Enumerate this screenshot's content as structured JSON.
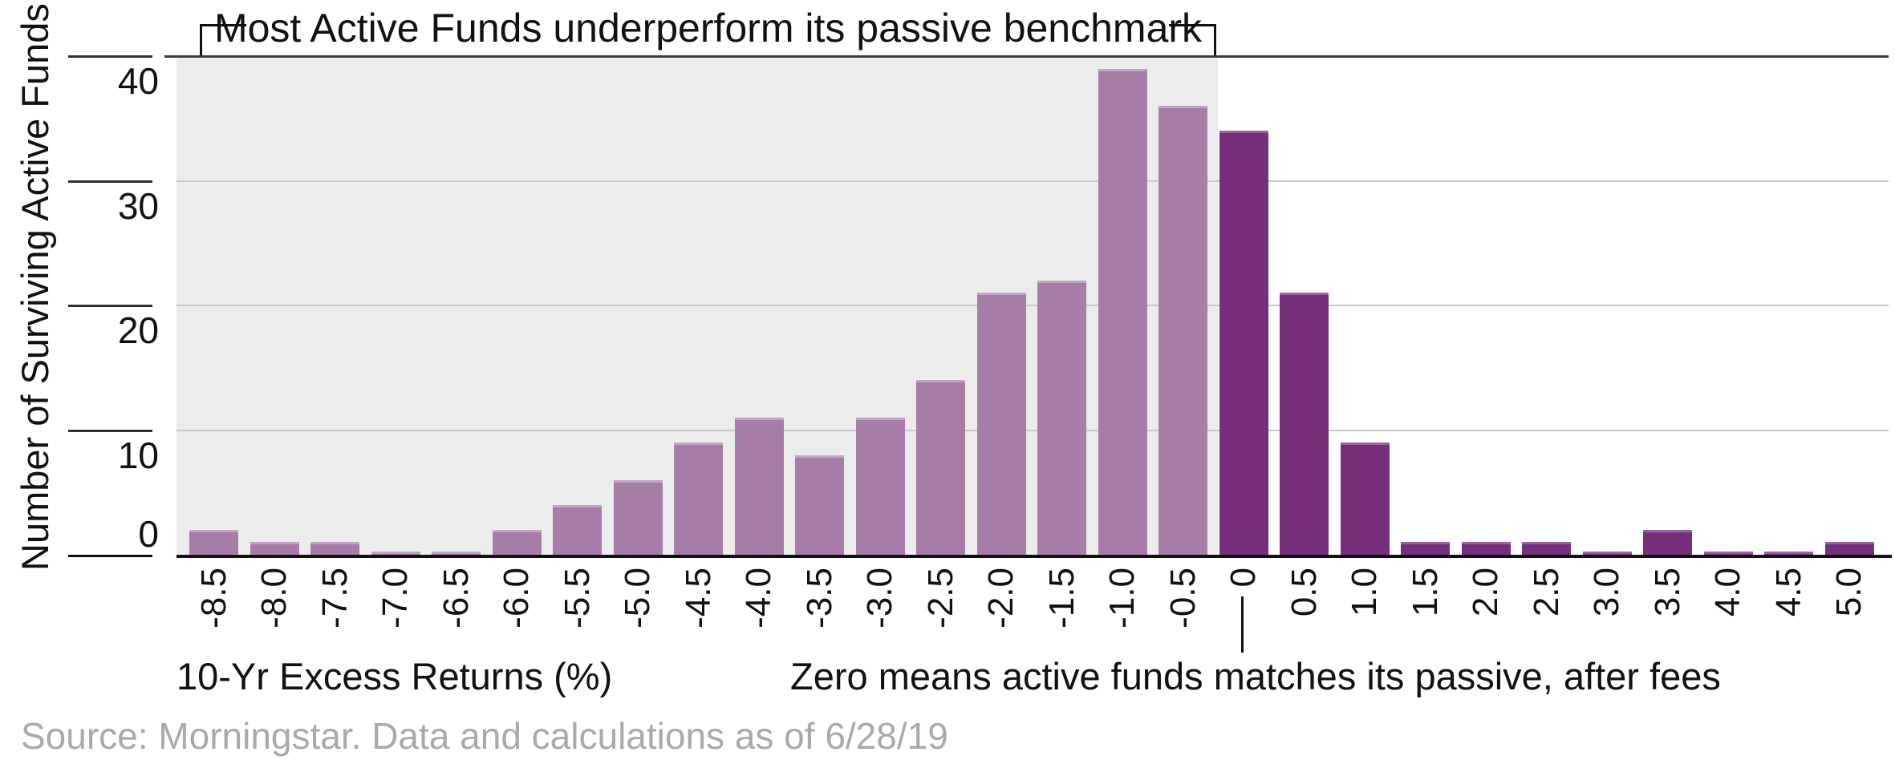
{
  "chart_data": {
    "type": "bar",
    "title": "Most Active Funds underperform its passive benchmark",
    "ylabel": "Number of Surviving Active Funds",
    "xlabel": "10-Yr Excess Returns (%)",
    "zero_annotation": "Zero means active funds matches its passive, after fees",
    "source": "Source: Morningstar. Data and calculations as of 6/28/19",
    "categories": [
      "-8.5",
      "-8.0",
      "-7.5",
      "-7.0",
      "-6.5",
      "-6.0",
      "-5.5",
      "-5.0",
      "-4.5",
      "-4.0",
      "-3.5",
      "-3.0",
      "-2.5",
      "-2.0",
      "-1.5",
      "-1.0",
      "-0.5",
      "0",
      "0.5",
      "1.0",
      "1.5",
      "2.0",
      "2.5",
      "3.0",
      "3.5",
      "4.0",
      "4.5",
      "5.0"
    ],
    "values": [
      2,
      1,
      1,
      0,
      0,
      2,
      4,
      6,
      9,
      11,
      8,
      11,
      14,
      21,
      22,
      39,
      36,
      34,
      21,
      9,
      1,
      1,
      1,
      0,
      2,
      0,
      0,
      1
    ],
    "yticks": [
      40,
      30,
      20,
      10,
      0
    ],
    "ylim": [
      0,
      40
    ],
    "grid": "horizontal gridlines at 10,20,30; dark top border at 40",
    "legend_position": "none",
    "shaded_region_categories": [
      "-8.5",
      "-0.5"
    ],
    "colors": {
      "underperform_bar": "#a57da7",
      "underperform_bar_cap": "#c2a4c4",
      "outperform_bar": "#76307b",
      "outperform_bar_cap": "#9c60a0",
      "shaded_background": "#ececec",
      "gridline": "#c9c9c9",
      "axis": "#111111",
      "source_text": "#a9a9a9",
      "text": "#111111"
    }
  }
}
